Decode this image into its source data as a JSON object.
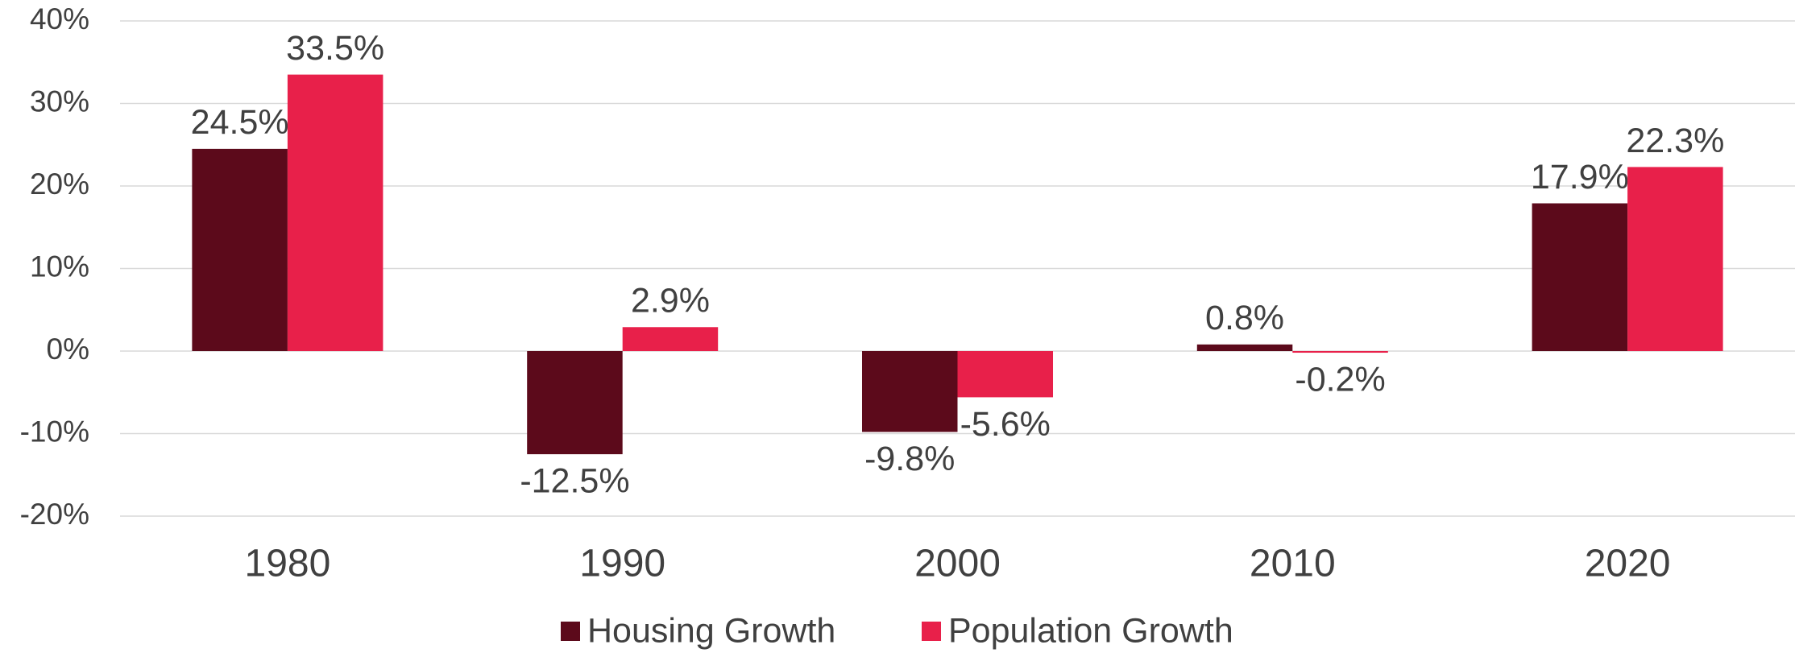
{
  "chart_data": {
    "type": "bar",
    "categories": [
      "1980",
      "1990",
      "2000",
      "2010",
      "2020"
    ],
    "series": [
      {
        "name": "Housing Growth",
        "color": "#5c0a1b",
        "values": [
          24.5,
          -12.5,
          -9.8,
          0.8,
          17.9
        ],
        "value_labels": [
          "24.5%",
          "-12.5%",
          "-9.8%",
          "0.8%",
          "17.9%"
        ]
      },
      {
        "name": "Population Growth",
        "color": "#e8204a",
        "values": [
          33.5,
          2.9,
          -5.6,
          -0.2,
          22.3
        ],
        "value_labels": [
          "33.5%",
          "2.9%",
          "-5.6%",
          "-0.2%",
          "22.3%"
        ]
      }
    ],
    "ylim": [
      -20,
      40
    ],
    "yticks": [
      {
        "value": -20,
        "label": "-20%"
      },
      {
        "value": -10,
        "label": "-10%"
      },
      {
        "value": 0,
        "label": "0%"
      },
      {
        "value": 10,
        "label": "10%"
      },
      {
        "value": 20,
        "label": "20%"
      },
      {
        "value": 30,
        "label": "30%"
      },
      {
        "value": 40,
        "label": "40%"
      }
    ],
    "grid": true,
    "legend": "bottom"
  }
}
